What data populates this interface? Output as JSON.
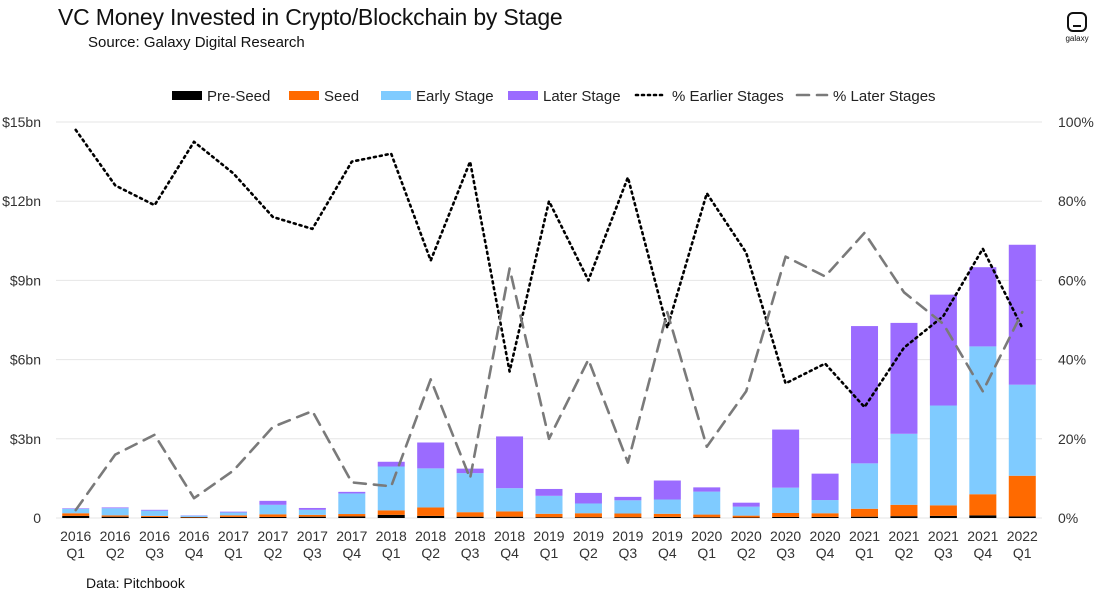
{
  "header": {
    "title": "VC Money Invested in Crypto/Blockchain by Stage",
    "subtitle": "Source: Galaxy Digital Research",
    "logo_text": "galaxy",
    "footnote": "Data: Pitchbook"
  },
  "colors": {
    "pre_seed": "#000000",
    "seed": "#ff6a00",
    "early": "#7fcbff",
    "later": "#9b6bff",
    "pct_earlier": "#000000",
    "pct_later": "#7a7a7a",
    "grid": "#e6e6e6",
    "axis_text": "#333333"
  },
  "chart_data": {
    "type": "bar",
    "stacked": true,
    "categories": [
      [
        "2016",
        "Q1"
      ],
      [
        "2016",
        "Q2"
      ],
      [
        "2016",
        "Q3"
      ],
      [
        "2016",
        "Q4"
      ],
      [
        "2017",
        "Q1"
      ],
      [
        "2017",
        "Q2"
      ],
      [
        "2017",
        "Q3"
      ],
      [
        "2017",
        "Q4"
      ],
      [
        "2018",
        "Q1"
      ],
      [
        "2018",
        "Q2"
      ],
      [
        "2018",
        "Q3"
      ],
      [
        "2018",
        "Q4"
      ],
      [
        "2019",
        "Q1"
      ],
      [
        "2019",
        "Q2"
      ],
      [
        "2019",
        "Q3"
      ],
      [
        "2019",
        "Q4"
      ],
      [
        "2020",
        "Q1"
      ],
      [
        "2020",
        "Q2"
      ],
      [
        "2020",
        "Q3"
      ],
      [
        "2020",
        "Q4"
      ],
      [
        "2021",
        "Q1"
      ],
      [
        "2021",
        "Q2"
      ],
      [
        "2021",
        "Q3"
      ],
      [
        "2021",
        "Q4"
      ],
      [
        "2022",
        "Q1"
      ]
    ],
    "series": [
      {
        "name": "Pre-Seed",
        "axis": "left",
        "values": [
          0.08,
          0.05,
          0.04,
          0.02,
          0.04,
          0.04,
          0.05,
          0.06,
          0.12,
          0.08,
          0.05,
          0.05,
          0.03,
          0.03,
          0.03,
          0.04,
          0.03,
          0.02,
          0.04,
          0.04,
          0.05,
          0.07,
          0.08,
          0.1,
          0.06
        ]
      },
      {
        "name": "Seed",
        "axis": "left",
        "values": [
          0.1,
          0.05,
          0.04,
          0.02,
          0.06,
          0.1,
          0.07,
          0.09,
          0.17,
          0.32,
          0.17,
          0.2,
          0.13,
          0.15,
          0.14,
          0.12,
          0.1,
          0.07,
          0.15,
          0.14,
          0.3,
          0.43,
          0.4,
          0.8,
          1.54
        ]
      },
      {
        "name": "Early Stage",
        "axis": "left",
        "values": [
          0.17,
          0.27,
          0.2,
          0.05,
          0.11,
          0.36,
          0.19,
          0.78,
          1.66,
          1.48,
          1.48,
          0.88,
          0.68,
          0.37,
          0.5,
          0.54,
          0.87,
          0.34,
          0.96,
          0.5,
          1.72,
          2.69,
          3.78,
          5.6,
          3.45
        ]
      },
      {
        "name": "Later Stage",
        "axis": "left",
        "values": [
          0.02,
          0.03,
          0.03,
          0.01,
          0.03,
          0.15,
          0.07,
          0.06,
          0.18,
          0.98,
          0.17,
          1.96,
          0.26,
          0.4,
          0.13,
          0.72,
          0.16,
          0.15,
          2.2,
          1.0,
          5.2,
          4.2,
          4.2,
          3.0,
          5.3
        ]
      },
      {
        "name": "% Earlier Stages",
        "axis": "right",
        "type": "line",
        "values": [
          98,
          84,
          79,
          95,
          87,
          76,
          73,
          90,
          92,
          65,
          90,
          37,
          80,
          60,
          86,
          48,
          82,
          67,
          34,
          39,
          28,
          43,
          51,
          68,
          48
        ]
      },
      {
        "name": "% Later Stages",
        "axis": "right",
        "type": "line",
        "values": [
          2,
          16,
          21,
          5,
          12,
          23,
          27,
          9,
          8,
          35,
          10,
          63,
          20,
          40,
          14,
          52,
          18,
          32,
          66,
          61,
          72,
          57,
          49,
          32,
          52
        ]
      }
    ],
    "y_left": {
      "min": 0,
      "max": 15,
      "ticks": [
        "0",
        "$3bn",
        "$6bn",
        "$9bn",
        "$12bn",
        "$15bn"
      ]
    },
    "y_right": {
      "min": 0,
      "max": 100,
      "ticks": [
        "0%",
        "20%",
        "40%",
        "60%",
        "80%",
        "100%"
      ]
    },
    "legend_position": "top-center",
    "grid": true
  }
}
